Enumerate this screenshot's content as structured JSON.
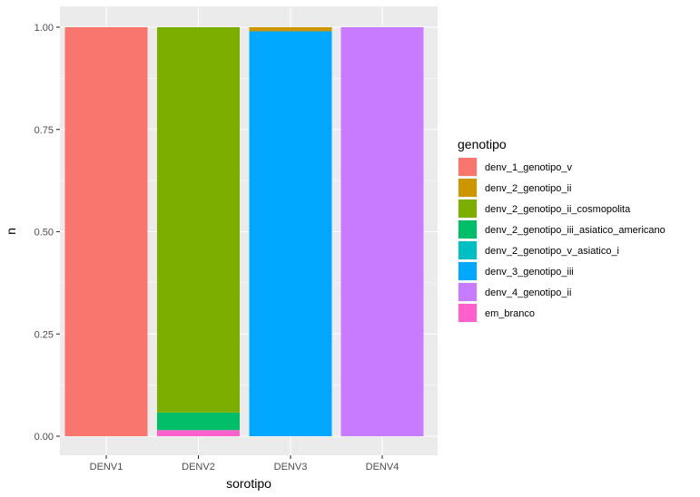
{
  "chart_data": {
    "type": "bar",
    "stacked": true,
    "xlabel": "sorotipo",
    "ylabel": "n",
    "ylim": [
      0,
      1
    ],
    "yticks": [
      "0.00",
      "0.25",
      "0.50",
      "0.75",
      "1.00"
    ],
    "ytick_values": [
      0,
      0.25,
      0.5,
      0.75,
      1.0
    ],
    "categories": [
      "DENV1",
      "DENV2",
      "DENV3",
      "DENV4"
    ],
    "legend_title": "genotipo",
    "legend_position": "right",
    "grid": true,
    "panel_background": "#ebebeb",
    "series": [
      {
        "name": "denv_1_genotipo_v",
        "color": "#F8766D",
        "values": [
          1.0,
          0,
          0,
          0
        ]
      },
      {
        "name": "denv_2_genotipo_ii",
        "color": "#CD9600",
        "values": [
          0,
          0,
          0.01,
          0
        ]
      },
      {
        "name": "denv_2_genotipo_ii_cosmopolita",
        "color": "#7CAE00",
        "values": [
          0,
          0.942,
          0,
          0
        ]
      },
      {
        "name": "denv_2_genotipo_iii_asiatico_americano",
        "color": "#00BE67",
        "values": [
          0,
          0.043,
          0,
          0
        ]
      },
      {
        "name": "denv_2_genotipo_v_asiatico_i",
        "color": "#00BFC4",
        "values": [
          0,
          0,
          0,
          0
        ]
      },
      {
        "name": "denv_3_genotipo_iii",
        "color": "#00A9FF",
        "values": [
          0,
          0,
          0.99,
          0
        ]
      },
      {
        "name": "denv_4_genotipo_ii",
        "color": "#C77CFF",
        "values": [
          0,
          0,
          0,
          1.0
        ]
      },
      {
        "name": "em_branco",
        "color": "#FF61CC",
        "values": [
          0,
          0.015,
          0,
          0
        ]
      }
    ]
  }
}
